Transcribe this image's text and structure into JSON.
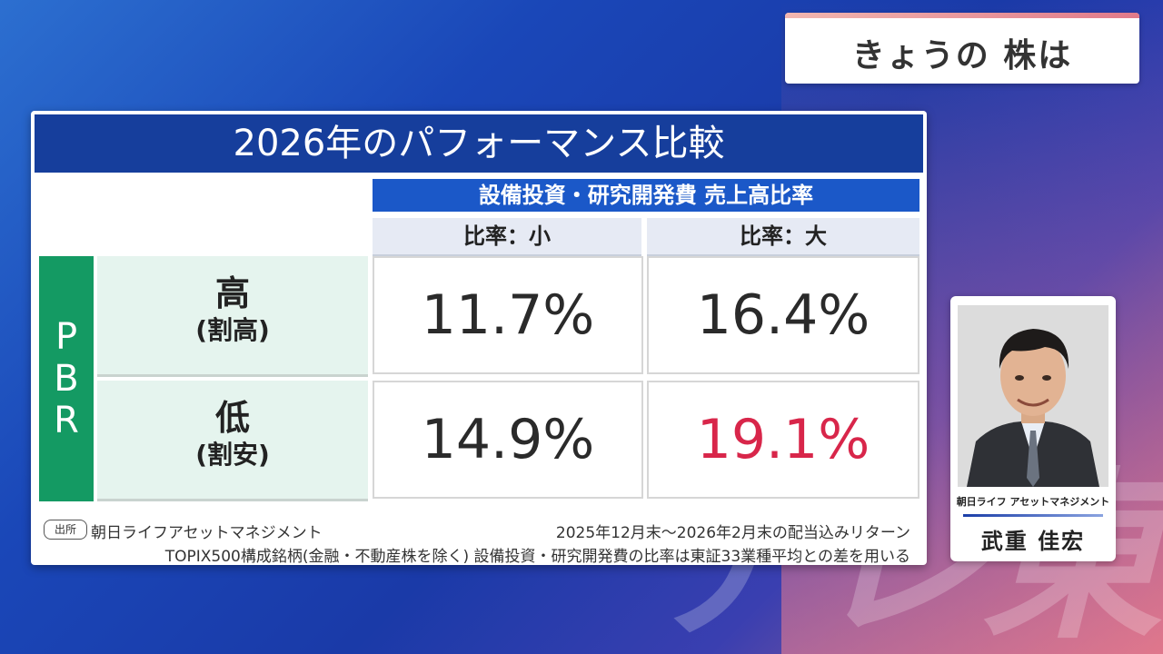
{
  "watermark": "テレ東",
  "header": {
    "label": "きょうの 株は"
  },
  "panel": {
    "title": "2026年のパフォーマンス比較",
    "column_group": "設備投資・研究開発費 売上高比率",
    "columns": [
      "比率：小",
      "比率：大"
    ],
    "row_axis": [
      "P",
      "B",
      "R"
    ],
    "rows": [
      {
        "label": "高",
        "sub": "(割高)",
        "values": [
          "11.7%",
          "16.4%"
        ]
      },
      {
        "label": "低",
        "sub": "(割安)",
        "values": [
          "14.9%",
          "19.1%"
        ]
      }
    ],
    "highlight_color": "#d8264a",
    "footer": {
      "source_badge": "出所",
      "source": "朝日ライフアセットマネジメント",
      "period": "2025年12月末～2026年2月末の配当込みリターン",
      "note": "TOPIX500構成銘柄(金融・不動産株を除く) 設備投資・研究開発費の比率は東証33業種平均との差を用いる"
    }
  },
  "profile": {
    "company": "朝日ライフ アセットマネジメント",
    "name": "武重 佳宏"
  }
}
